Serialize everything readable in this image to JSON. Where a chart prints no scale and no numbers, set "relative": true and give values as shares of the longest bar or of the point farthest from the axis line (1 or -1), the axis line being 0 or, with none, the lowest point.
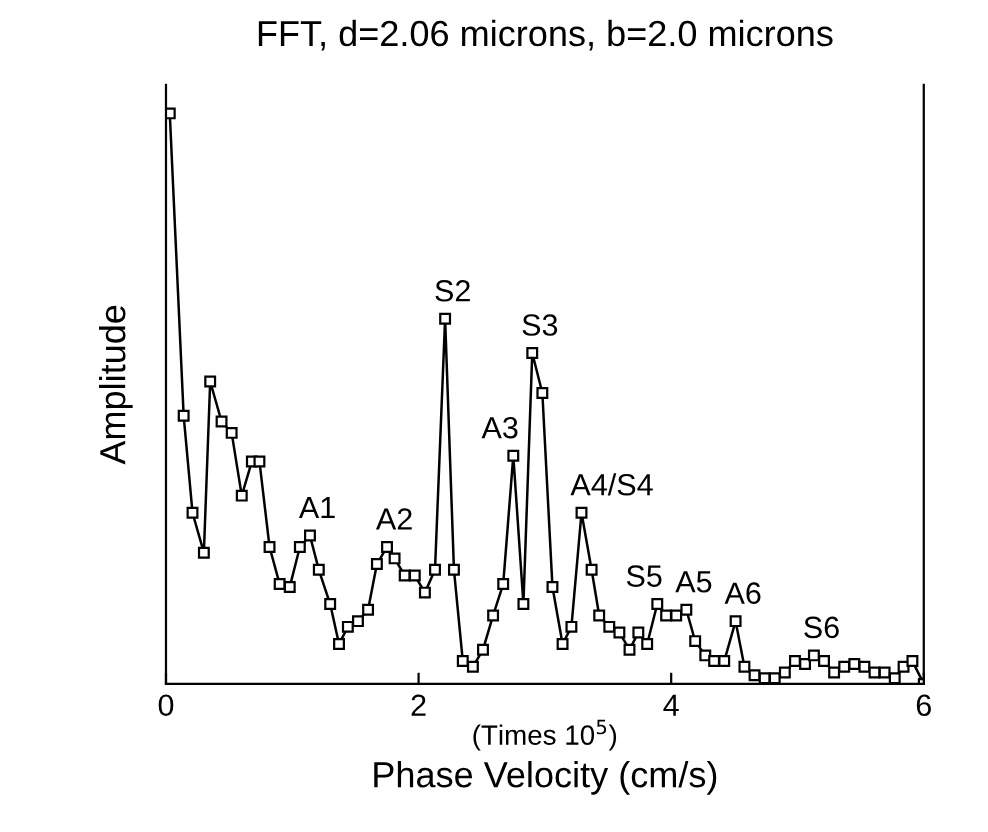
{
  "chart_data": {
    "type": "line",
    "title": "FFT, d=2.06 microns, b=2.0 microns",
    "xlabel": "Phase Velocity (cm/s)",
    "ylabel": "Amplitude",
    "relative": true,
    "xlim": [
      0,
      6
    ],
    "xticks": [
      0,
      2,
      4,
      6
    ],
    "marker": "square",
    "grid": false,
    "x": [
      0.03,
      0.14,
      0.21,
      0.3,
      0.35,
      0.44,
      0.52,
      0.6,
      0.68,
      0.74,
      0.82,
      0.9,
      0.98,
      1.06,
      1.14,
      1.21,
      1.3,
      1.37,
      1.44,
      1.52,
      1.6,
      1.67,
      1.75,
      1.81,
      1.89,
      1.97,
      2.05,
      2.13,
      2.21,
      2.28,
      2.35,
      2.43,
      2.51,
      2.59,
      2.67,
      2.75,
      2.83,
      2.9,
      2.98,
      3.06,
      3.14,
      3.21,
      3.29,
      3.37,
      3.43,
      3.51,
      3.59,
      3.67,
      3.74,
      3.81,
      3.89,
      3.96,
      4.04,
      4.12,
      4.19,
      4.27,
      4.34,
      4.42,
      4.51,
      4.58,
      4.66,
      4.74,
      4.82,
      4.9,
      4.98,
      5.06,
      5.13,
      5.21,
      5.29,
      5.37,
      5.45,
      5.53,
      5.61,
      5.69,
      5.77,
      5.84,
      5.91,
      6.0
    ],
    "values": [
      1.0,
      0.47,
      0.3,
      0.23,
      0.53,
      0.46,
      0.44,
      0.33,
      0.39,
      0.39,
      0.24,
      0.175,
      0.17,
      0.24,
      0.26,
      0.2,
      0.14,
      0.07,
      0.1,
      0.11,
      0.13,
      0.21,
      0.24,
      0.22,
      0.19,
      0.19,
      0.16,
      0.2,
      0.64,
      0.2,
      0.04,
      0.03,
      0.06,
      0.12,
      0.175,
      0.4,
      0.14,
      0.58,
      0.51,
      0.17,
      0.07,
      0.1,
      0.3,
      0.2,
      0.12,
      0.1,
      0.09,
      0.06,
      0.09,
      0.07,
      0.14,
      0.12,
      0.12,
      0.13,
      0.075,
      0.05,
      0.04,
      0.04,
      0.11,
      0.03,
      0.015,
      0.01,
      0.01,
      0.02,
      0.04,
      0.035,
      0.05,
      0.04,
      0.02,
      0.03,
      0.035,
      0.03,
      0.02,
      0.02,
      0.01,
      0.03,
      0.04,
      0.0
    ],
    "color": "#000000",
    "annotations": [
      {
        "text": "A1",
        "x": 1.14,
        "y": 0.26
      },
      {
        "text": "A2",
        "x": 1.75,
        "y": 0.24
      },
      {
        "text": "S2",
        "x": 2.21,
        "y": 0.64
      },
      {
        "text": "A3",
        "x": 2.75,
        "y": 0.4
      },
      {
        "text": "S3",
        "x": 2.9,
        "y": 0.58
      },
      {
        "text": "A4/S4",
        "x": 3.29,
        "y": 0.3
      },
      {
        "text": "S5",
        "x": 3.89,
        "y": 0.14
      },
      {
        "text": "A5",
        "x": 4.12,
        "y": 0.13
      },
      {
        "text": "A6",
        "x": 4.51,
        "y": 0.11
      },
      {
        "text": "S6",
        "x": 5.13,
        "y": 0.05
      },
      "(Times 10$^{5}$)"
    ]
  }
}
